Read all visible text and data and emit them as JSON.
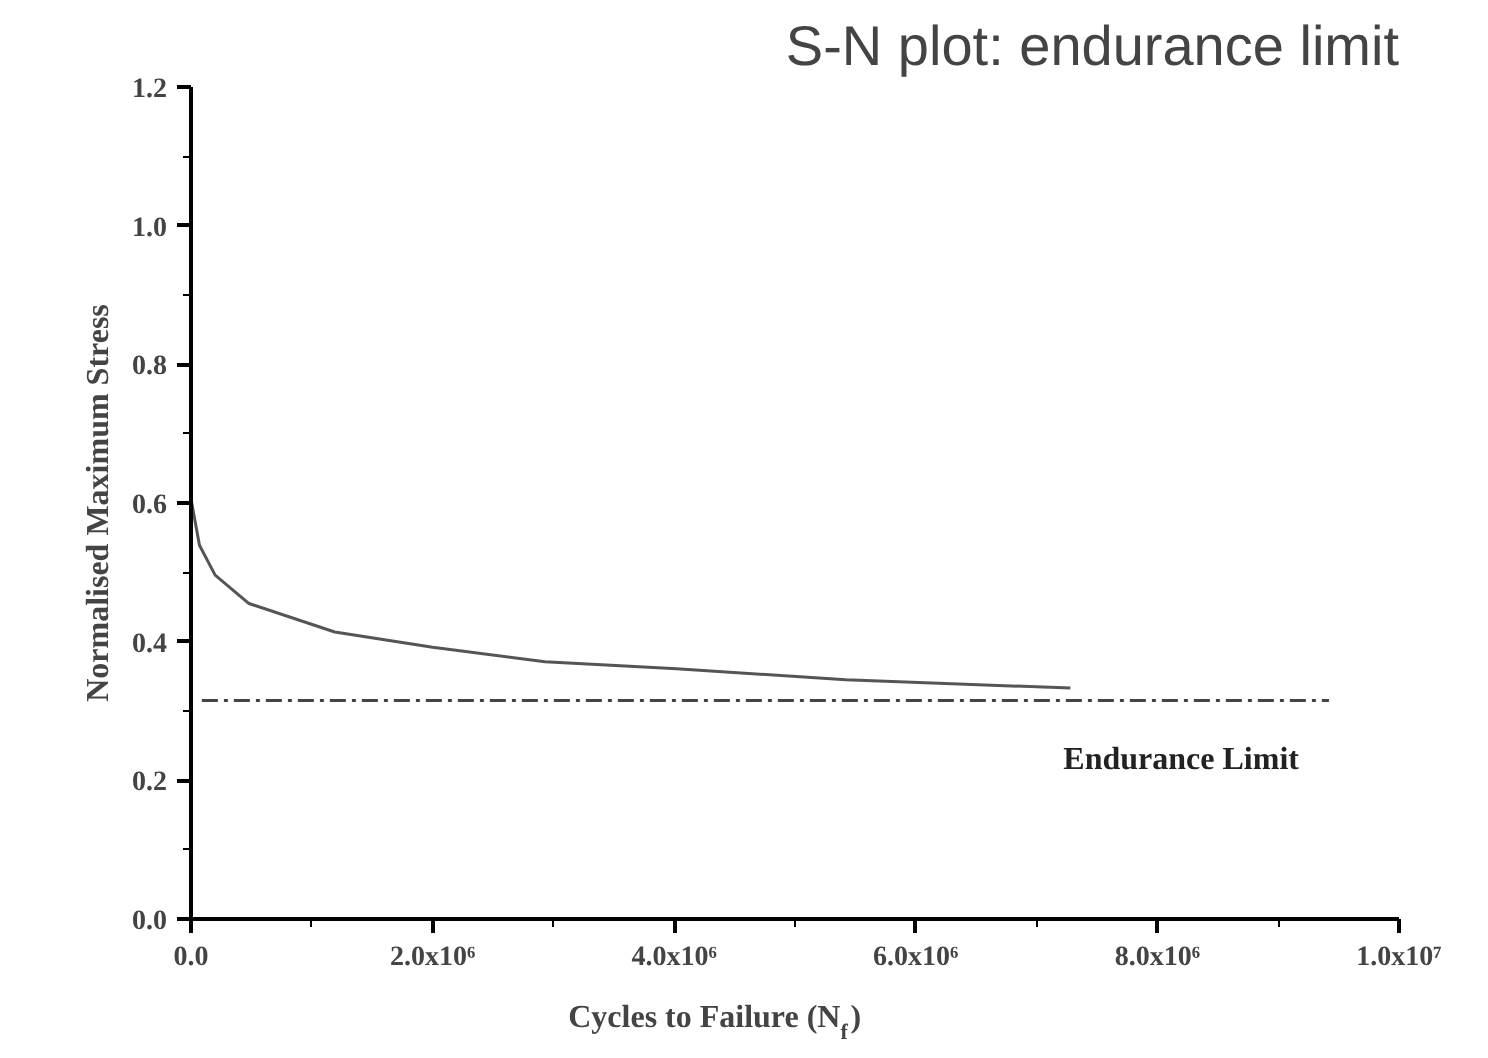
{
  "chart_data": {
    "type": "line",
    "title": "S-N plot: endurance limit",
    "xlabel": "Cycles to Failure (N$_{f}$)",
    "ylabel": "Normalised Maximum Stress",
    "xlim": [
      0,
      10000000
    ],
    "ylim": [
      0,
      1.2
    ],
    "xticks": [
      {
        "value": 0,
        "label": "0.0"
      },
      {
        "value": 2000000,
        "label": "2.0x10⁶"
      },
      {
        "value": 4000000,
        "label": "4.0x10⁶"
      },
      {
        "value": 6000000,
        "label": "6.0x10⁶"
      },
      {
        "value": 8000000,
        "label": "8.0x10⁶"
      },
      {
        "value": 10000000,
        "label": "1.0x10⁷"
      }
    ],
    "yticks": [
      {
        "value": 0,
        "label": "0.0"
      },
      {
        "value": 0.2,
        "label": "0.2"
      },
      {
        "value": 0.4,
        "label": "0.4"
      },
      {
        "value": 0.6,
        "label": "0.6"
      },
      {
        "value": 0.8,
        "label": "0.8"
      },
      {
        "value": 1.0,
        "label": "1.0"
      },
      {
        "value": 1.2,
        "label": "1.2"
      }
    ],
    "grid": false,
    "marker": "none",
    "series": [
      {
        "color": "#555555",
        "line_style": "solid",
        "x": [
          0,
          70000,
          200000,
          480000,
          1190000,
          2000000,
          2930000,
          4020000,
          5420000,
          7280000
        ],
        "values": [
          0.606,
          0.539,
          0.496,
          0.455,
          0.414,
          0.392,
          0.371,
          0.361,
          0.345,
          0.333
        ]
      },
      {
        "name": "Endurance Limit",
        "color": "#444444",
        "line_style": "dashed",
        "x": [
          90000,
          9420000
        ],
        "values": [
          0.315,
          0.315
        ]
      }
    ]
  }
}
